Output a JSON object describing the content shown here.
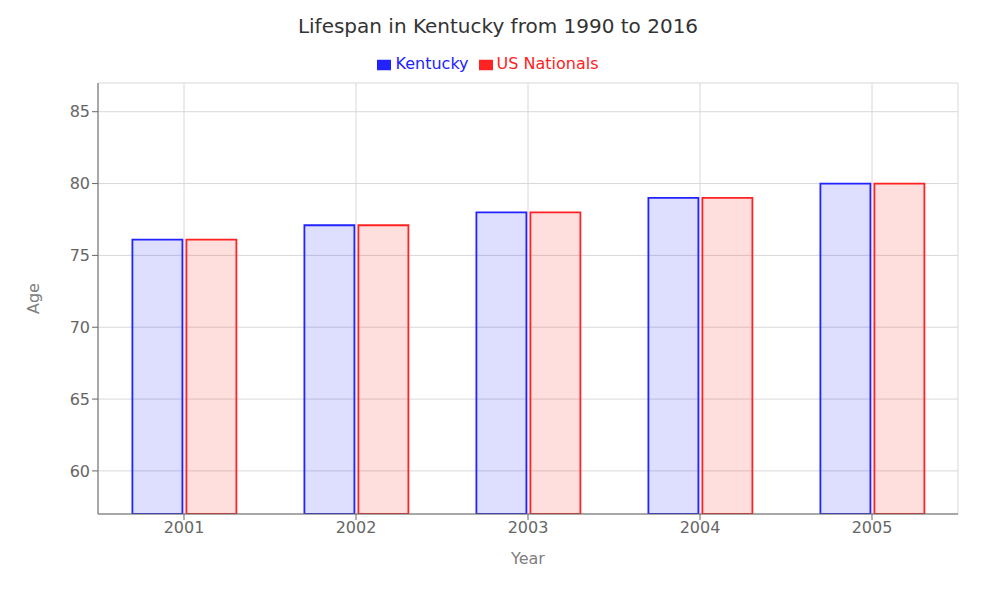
{
  "chart_data": {
    "type": "bar",
    "title": "Lifespan in Kentucky from 1990 to 2016",
    "xlabel": "Year",
    "ylabel": "Age",
    "categories": [
      "2001",
      "2002",
      "2003",
      "2004",
      "2005"
    ],
    "series": [
      {
        "name": "Kentucky",
        "color": "#2222ff",
        "values": [
          76.1,
          77.1,
          78.0,
          79.0,
          80.0
        ]
      },
      {
        "name": "US Nationals",
        "color": "#ff2222",
        "values": [
          76.1,
          77.1,
          78.0,
          79.0,
          80.0
        ]
      }
    ],
    "ylim": [
      57,
      87
    ],
    "yticks": [
      60,
      65,
      70,
      75,
      80,
      85
    ],
    "grid": true,
    "legend": "top"
  }
}
